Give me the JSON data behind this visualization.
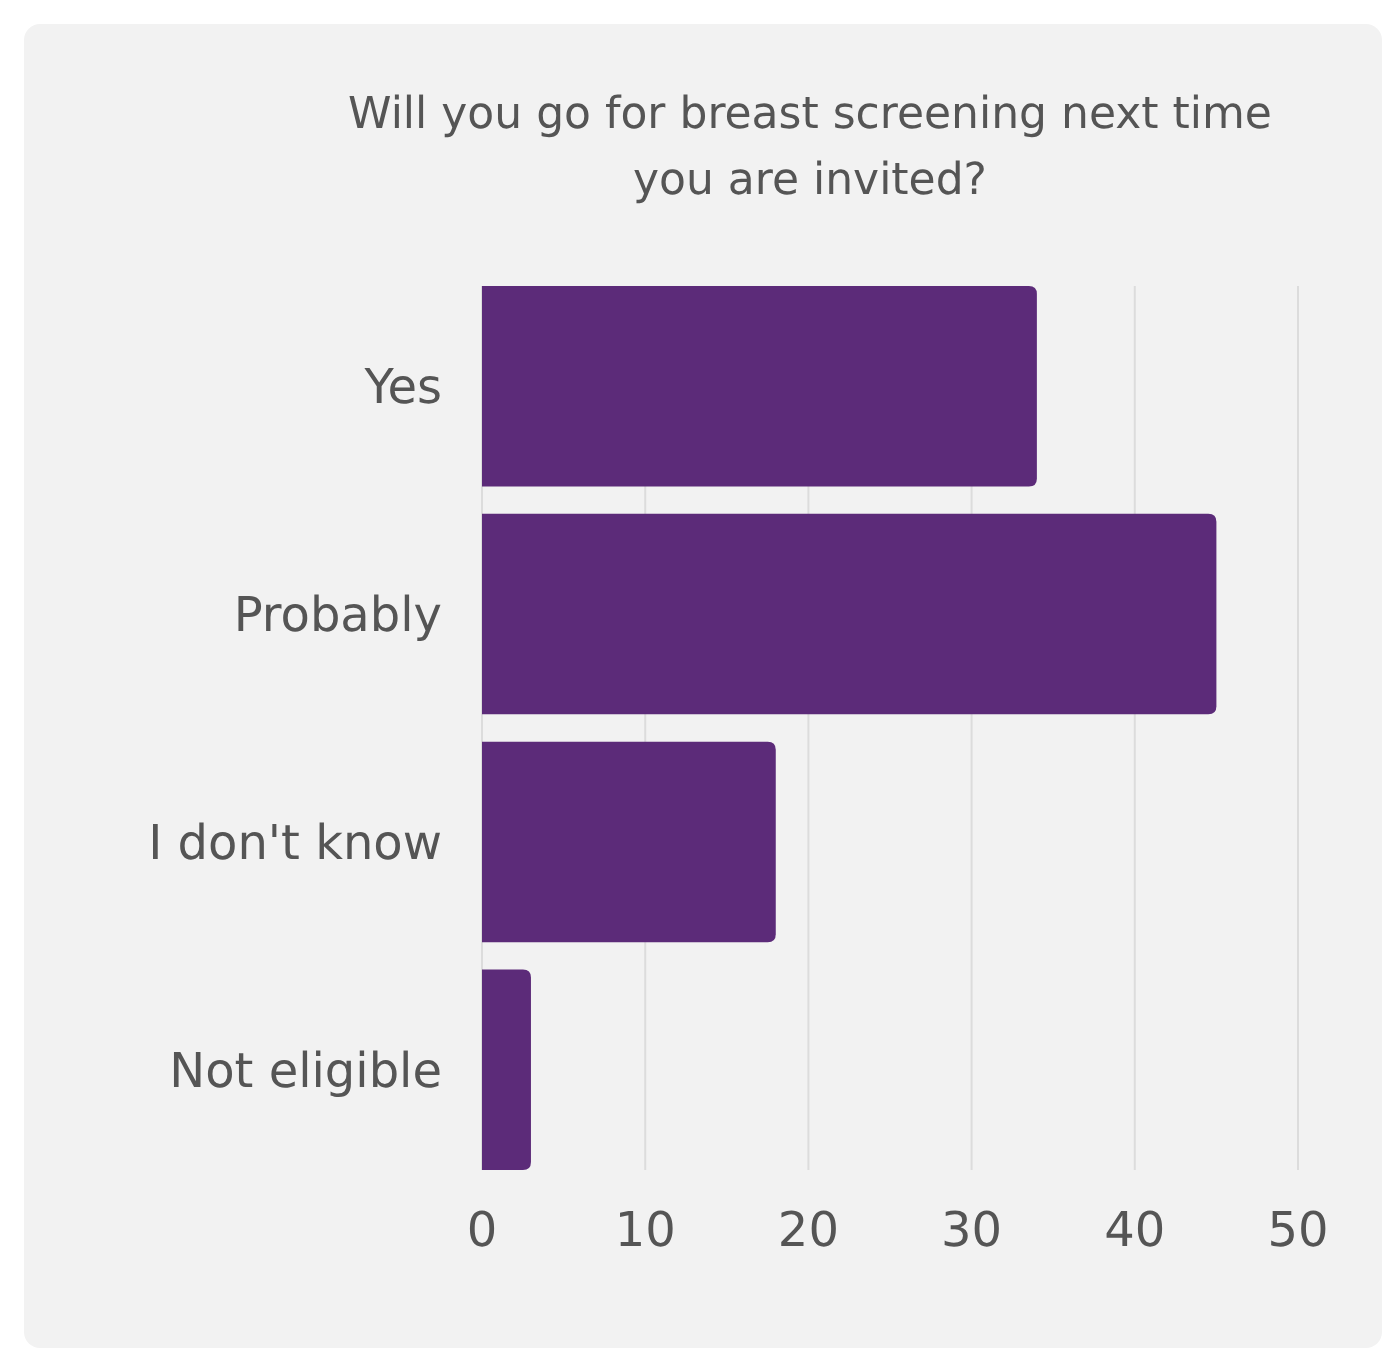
{
  "chart_data": {
    "type": "bar",
    "orientation": "horizontal",
    "title": "Will you go for breast screening next time you are invited?",
    "categories": [
      "Yes",
      "Probably",
      "I don't know",
      "Not eligible"
    ],
    "values": [
      34,
      45,
      18,
      3
    ],
    "color": "#5c2b79",
    "xlim": [
      0,
      50
    ],
    "xticks": [
      0,
      10,
      20,
      30,
      40,
      50
    ],
    "grid": "x"
  }
}
